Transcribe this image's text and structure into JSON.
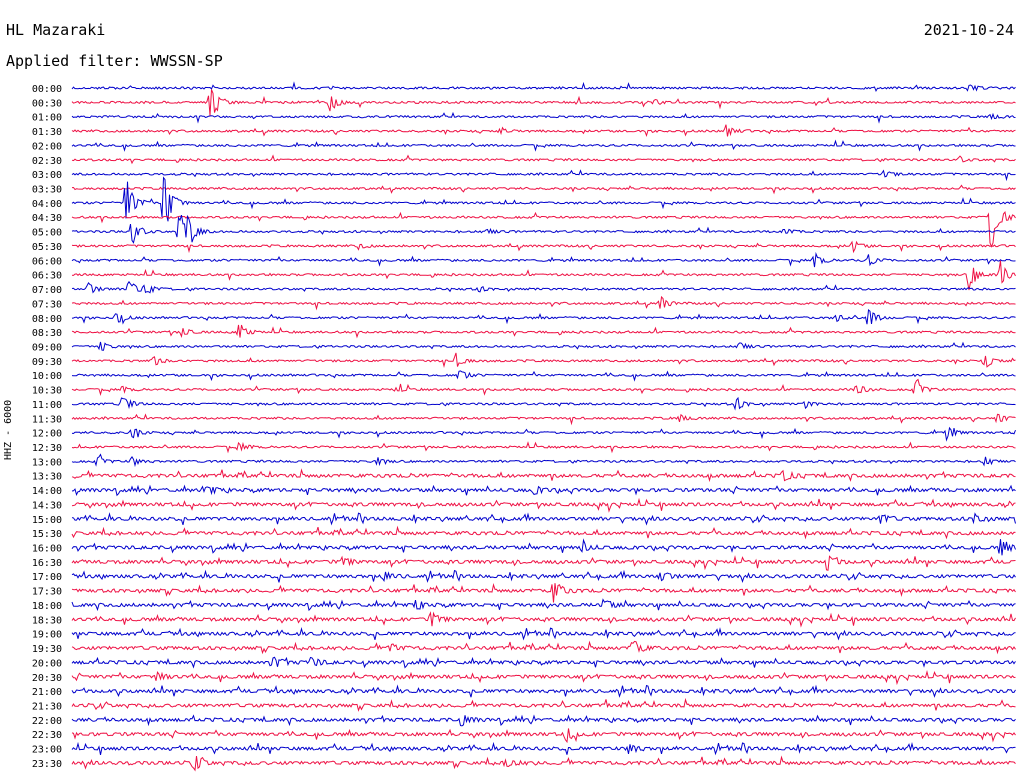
{
  "header": {
    "station": "HL Mazaraki",
    "date": "2021-10-24",
    "filter": "Applied filter: WWSSN-SP"
  },
  "y_axis_label": "HHZ - 6000",
  "colors": {
    "even_row": "#0000cc",
    "odd_row": "#ee1144",
    "text": "#000000"
  },
  "chart_data": {
    "type": "line",
    "description_kind": "helicorder",
    "rows": [
      "00:00",
      "00:30",
      "01:00",
      "01:30",
      "02:00",
      "02:30",
      "03:00",
      "03:30",
      "04:00",
      "04:30",
      "05:00",
      "05:30",
      "06:00",
      "06:30",
      "07:00",
      "07:30",
      "08:00",
      "08:30",
      "09:00",
      "09:30",
      "10:00",
      "10:30",
      "11:00",
      "11:30",
      "12:00",
      "12:30",
      "13:00",
      "13:30",
      "14:00",
      "14:30",
      "15:00",
      "15:30",
      "16:00",
      "16:30",
      "17:00",
      "17:30",
      "18:00",
      "18:30",
      "19:00",
      "19:30",
      "20:00",
      "20:30",
      "21:00",
      "21:30",
      "22:00",
      "22:30",
      "23:00",
      "23:30"
    ],
    "row_minutes": 30,
    "events": [
      {
        "row": 0,
        "min": 28.5,
        "amp": 4
      },
      {
        "row": 1,
        "min": 4.4,
        "amp": 25
      },
      {
        "row": 1,
        "min": 8.2,
        "amp": 10
      },
      {
        "row": 1,
        "min": 18.5,
        "amp": 3
      },
      {
        "row": 2,
        "min": 29.2,
        "amp": 3
      },
      {
        "row": 3,
        "min": 20.8,
        "amp": 7
      },
      {
        "row": 3,
        "min": 13.6,
        "amp": 3
      },
      {
        "row": 5,
        "min": 28.2,
        "amp": 3
      },
      {
        "row": 6,
        "min": 25.8,
        "amp": 4
      },
      {
        "row": 8,
        "min": 1.7,
        "amp": 28
      },
      {
        "row": 8,
        "min": 2.9,
        "amp": 40
      },
      {
        "row": 9,
        "min": 29.2,
        "amp": 40
      },
      {
        "row": 10,
        "min": 1.9,
        "amp": 14
      },
      {
        "row": 10,
        "min": 3.4,
        "amp": 12
      },
      {
        "row": 10,
        "min": 3.7,
        "amp": 12
      },
      {
        "row": 10,
        "min": 3.4,
        "amp": 14
      },
      {
        "row": 10,
        "min": 13.2,
        "amp": 3
      },
      {
        "row": 10,
        "min": 22.6,
        "amp": 4
      },
      {
        "row": 11,
        "min": 9.1,
        "amp": 3
      },
      {
        "row": 11,
        "min": 24.8,
        "amp": 6
      },
      {
        "row": 12,
        "min": 23.6,
        "amp": 8
      },
      {
        "row": 12,
        "min": 25.3,
        "amp": 6
      },
      {
        "row": 13,
        "min": 28.5,
        "amp": 16
      },
      {
        "row": 13,
        "min": 29.5,
        "amp": 14
      },
      {
        "row": 14,
        "min": 0.5,
        "amp": 7
      },
      {
        "row": 14,
        "min": 2.3,
        "amp": 6
      },
      {
        "row": 14,
        "min": 1.8,
        "amp": 10
      },
      {
        "row": 14,
        "min": 12.9,
        "amp": 3
      },
      {
        "row": 15,
        "min": 18.7,
        "amp": 7
      },
      {
        "row": 16,
        "min": 1.4,
        "amp": 6
      },
      {
        "row": 16,
        "min": 24.3,
        "amp": 4
      },
      {
        "row": 16,
        "min": 25.3,
        "amp": 10
      },
      {
        "row": 17,
        "min": 3.5,
        "amp": 5
      },
      {
        "row": 17,
        "min": 5.3,
        "amp": 10
      },
      {
        "row": 18,
        "min": 0.9,
        "amp": 5
      },
      {
        "row": 18,
        "min": 21.2,
        "amp": 5
      },
      {
        "row": 19,
        "min": 2.6,
        "amp": 5
      },
      {
        "row": 19,
        "min": 12.2,
        "amp": 7
      },
      {
        "row": 19,
        "min": 29.0,
        "amp": 8
      },
      {
        "row": 20,
        "min": 12.3,
        "amp": 6
      },
      {
        "row": 21,
        "min": 1.6,
        "amp": 3
      },
      {
        "row": 21,
        "min": 10.3,
        "amp": 3
      },
      {
        "row": 21,
        "min": 24.9,
        "amp": 7
      },
      {
        "row": 21,
        "min": 26.8,
        "amp": 10
      },
      {
        "row": 22,
        "min": 1.6,
        "amp": 8
      },
      {
        "row": 22,
        "min": 21.1,
        "amp": 7
      },
      {
        "row": 22,
        "min": 23.3,
        "amp": 4
      },
      {
        "row": 23,
        "min": 19.3,
        "amp": 4
      },
      {
        "row": 23,
        "min": 29.4,
        "amp": 5
      },
      {
        "row": 24,
        "min": 1.9,
        "amp": 6
      },
      {
        "row": 24,
        "min": 27.8,
        "amp": 7
      },
      {
        "row": 25,
        "min": 5.3,
        "amp": 5
      },
      {
        "row": 26,
        "min": 0.8,
        "amp": 5
      },
      {
        "row": 26,
        "min": 1.9,
        "amp": 5
      },
      {
        "row": 26,
        "min": 9.7,
        "amp": 4
      },
      {
        "row": 26,
        "min": 29.0,
        "amp": 5
      },
      {
        "row": 27,
        "min": 22.6,
        "amp": 6
      },
      {
        "row": 28,
        "min": 4.3,
        "amp": 5
      },
      {
        "row": 28,
        "min": 14.7,
        "amp": 4
      },
      {
        "row": 30,
        "min": 25.7,
        "amp": 5
      },
      {
        "row": 30,
        "min": 28.7,
        "amp": 6
      },
      {
        "row": 32,
        "min": 16.2,
        "amp": 7
      },
      {
        "row": 32,
        "min": 29.5,
        "amp": 9
      },
      {
        "row": 33,
        "min": 24.0,
        "amp": 9
      },
      {
        "row": 33,
        "min": 8.6,
        "amp": 5
      },
      {
        "row": 34,
        "min": 9.9,
        "amp": 6
      },
      {
        "row": 34,
        "min": 18.7,
        "amp": 7
      },
      {
        "row": 35,
        "min": 15.3,
        "amp": 12
      },
      {
        "row": 36,
        "min": 10.9,
        "amp": 6
      },
      {
        "row": 36,
        "min": 16.9,
        "amp": 6
      },
      {
        "row": 37,
        "min": 11.4,
        "amp": 9
      },
      {
        "row": 39,
        "min": 17.8,
        "amp": 10
      },
      {
        "row": 39,
        "min": 10.1,
        "amp": 5
      },
      {
        "row": 40,
        "min": 6.4,
        "amp": 6
      },
      {
        "row": 40,
        "min": 7.6,
        "amp": 5
      },
      {
        "row": 41,
        "min": 2.7,
        "amp": 6
      },
      {
        "row": 44,
        "min": 12.4,
        "amp": 5
      },
      {
        "row": 45,
        "min": 15.7,
        "amp": 7
      },
      {
        "row": 46,
        "min": 17.7,
        "amp": 6
      },
      {
        "row": 47,
        "min": 3.9,
        "amp": 7
      },
      {
        "row": 47,
        "min": 13.8,
        "amp": 7
      }
    ]
  }
}
